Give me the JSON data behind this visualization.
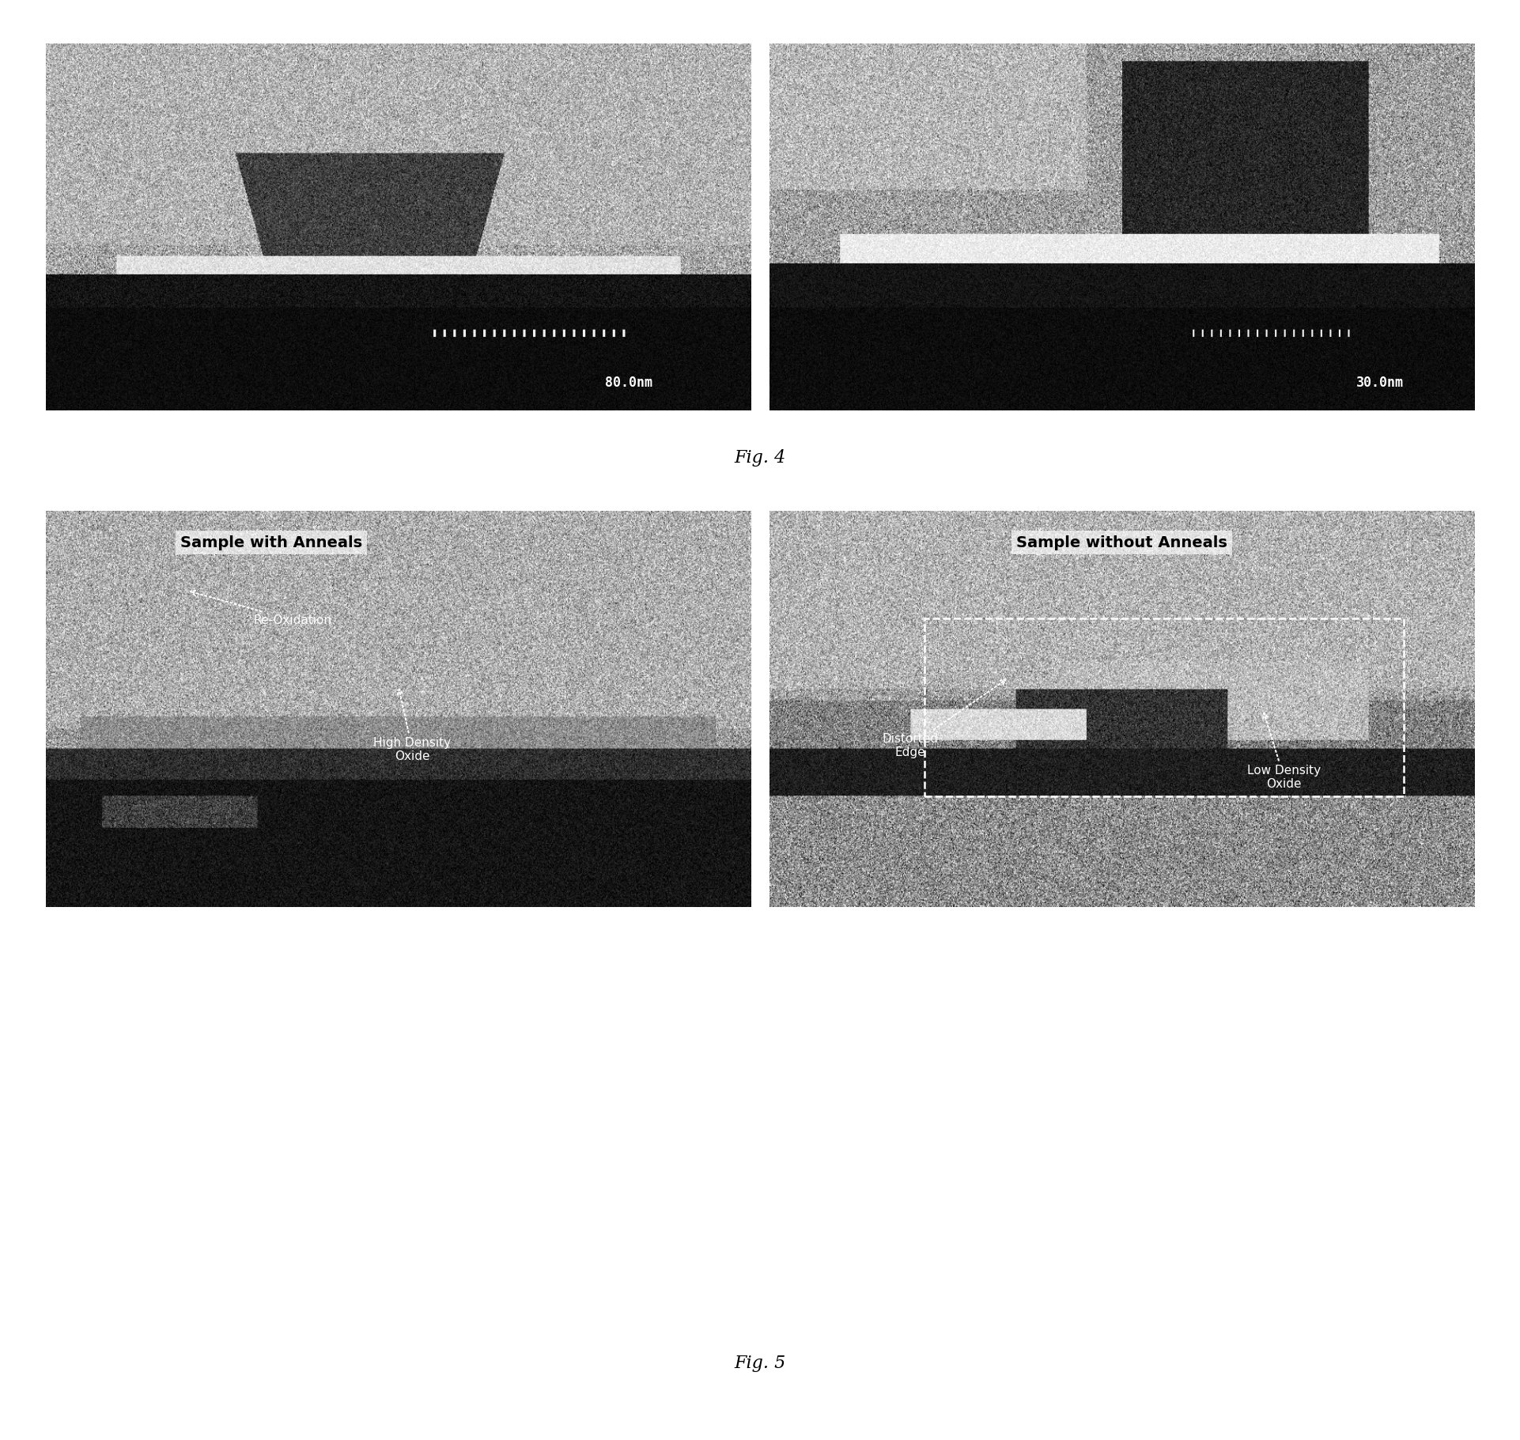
{
  "fig_width": 19.22,
  "fig_height": 18.21,
  "bg_color": "#ffffff",
  "fig4_caption": "Fig. 4",
  "fig5_caption": "Fig. 5",
  "top_left_scale": "80.0nm",
  "top_right_scale": "30.0nm",
  "left_title": "Sample with Anneals",
  "right_title": "Sample without Anneals",
  "label_high_density": "High Density\nOxide",
  "label_re_oxidation": "Re-Oxidation",
  "label_distorted_edge": "Distorted\nEdge",
  "label_low_density": "Low Density\nOxide",
  "title_fontsize": 14,
  "caption_fontsize": 16,
  "label_fontsize": 11,
  "scale_fontsize": 12
}
